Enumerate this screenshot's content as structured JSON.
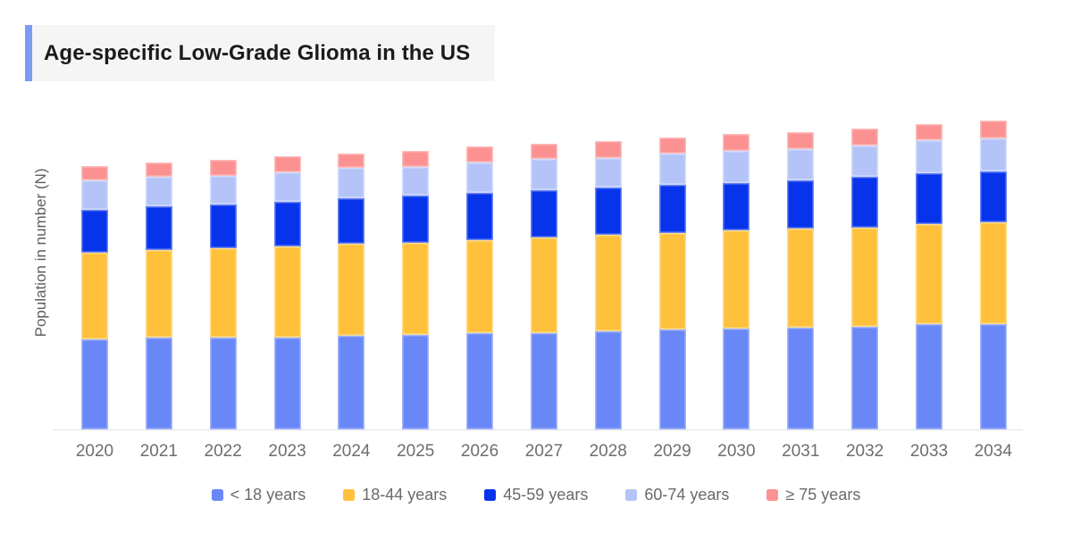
{
  "title": {
    "text": "Age-specific Low-Grade Glioma in the US"
  },
  "colors": {
    "title_accent": "#7D9AF5",
    "title_background": "#F5F5F5",
    "axis_line": "#E2E2E2",
    "axis_text": "#6E6E6E",
    "legend_text": "#6A6A6A"
  },
  "chart_data": {
    "type": "bar",
    "stacked": true,
    "title": "Age-specific Low-Grade Glioma in the US",
    "xlabel": "",
    "ylabel": "Population in number (N)",
    "categories": [
      "2020",
      "2021",
      "2022",
      "2023",
      "2024",
      "2025",
      "2026",
      "2027",
      "2028",
      "2029",
      "2030",
      "2031",
      "2032",
      "2033",
      "2034"
    ],
    "series": [
      {
        "name": "< 18 years",
        "color": "#6A87F7",
        "values": [
          101,
          103,
          103,
          103,
          105,
          106,
          108,
          108,
          110,
          112,
          113,
          114,
          115,
          118,
          118
        ]
      },
      {
        "name": "18-44 years",
        "color": "#FFC13B",
        "values": [
          97,
          98,
          100,
          102,
          103,
          103,
          104,
          107,
          108,
          108,
          110,
          111,
          111,
          112,
          114
        ]
      },
      {
        "name": "45-59 years",
        "color": "#0733EB",
        "values": [
          48,
          49,
          49,
          50,
          51,
          53,
          53,
          53,
          53,
          54,
          53,
          54,
          57,
          57,
          57
        ]
      },
      {
        "name": "60-74 years",
        "color": "#B4C4F8",
        "values": [
          33,
          33,
          32,
          33,
          34,
          32,
          34,
          35,
          33,
          35,
          36,
          35,
          35,
          37,
          37
        ]
      },
      {
        "name": "≥ 75 years",
        "color": "#FC9191",
        "values": [
          16,
          16,
          18,
          18,
          16,
          18,
          18,
          17,
          19,
          18,
          19,
          19,
          19,
          18,
          20
        ]
      }
    ],
    "value_units": "relative height (no numeric y-axis ticks shown)",
    "ylim": [
      0,
      351
    ],
    "grid": false,
    "legend_position": "bottom"
  }
}
